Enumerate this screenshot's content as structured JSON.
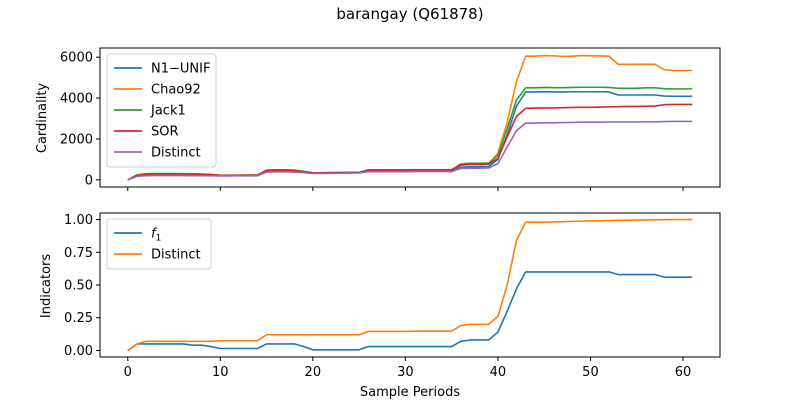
{
  "title": "barangay (Q61878)",
  "colors": {
    "blue": "#1f77b4",
    "orange": "#ff7f0e",
    "green": "#2ca02c",
    "red": "#d62728",
    "purple": "#9467bd"
  },
  "chart_data": [
    {
      "type": "line",
      "ylabel": "Cardinality",
      "xlim": [
        -3,
        64
      ],
      "ylim": [
        -350,
        6450
      ],
      "xticks": [
        0,
        10,
        20,
        30,
        40,
        50,
        60
      ],
      "yticks": [
        0,
        2000,
        4000,
        6000
      ],
      "ytick_labels": [
        "0",
        "2000",
        "4000",
        "6000"
      ],
      "legend_position": "upper left",
      "x": [
        0,
        1,
        2,
        3,
        4,
        5,
        6,
        7,
        8,
        9,
        10,
        11,
        12,
        13,
        14,
        15,
        16,
        17,
        18,
        19,
        20,
        21,
        22,
        23,
        24,
        25,
        26,
        27,
        28,
        29,
        30,
        31,
        32,
        33,
        34,
        35,
        36,
        37,
        38,
        39,
        40,
        41,
        42,
        43,
        44,
        45,
        46,
        47,
        48,
        49,
        50,
        51,
        52,
        53,
        54,
        55,
        56,
        57,
        58,
        59,
        60,
        61
      ],
      "series": [
        {
          "name": "N1−UNIF",
          "color": "blue",
          "values": [
            0,
            180,
            220,
            240,
            250,
            250,
            240,
            230,
            220,
            210,
            200,
            205,
            210,
            215,
            220,
            420,
            430,
            430,
            420,
            380,
            330,
            335,
            340,
            345,
            350,
            355,
            430,
            430,
            430,
            430,
            430,
            440,
            440,
            440,
            440,
            440,
            620,
            640,
            640,
            650,
            1000,
            2200,
            3600,
            4300,
            4300,
            4310,
            4300,
            4300,
            4310,
            4310,
            4310,
            4310,
            4300,
            4150,
            4150,
            4150,
            4150,
            4150,
            4100,
            4090,
            4090,
            4090
          ]
        },
        {
          "name": "Chao92",
          "color": "orange",
          "values": [
            0,
            230,
            280,
            290,
            290,
            290,
            280,
            280,
            270,
            250,
            210,
            215,
            220,
            225,
            230,
            450,
            460,
            460,
            450,
            390,
            330,
            335,
            340,
            345,
            350,
            355,
            450,
            450,
            450,
            450,
            450,
            460,
            460,
            460,
            460,
            460,
            720,
            740,
            740,
            760,
            1300,
            2800,
            4800,
            6050,
            6050,
            6080,
            6070,
            6040,
            6050,
            6080,
            6070,
            6060,
            6050,
            5650,
            5650,
            5650,
            5660,
            5650,
            5380,
            5350,
            5350,
            5350
          ]
        },
        {
          "name": "Jack1",
          "color": "green",
          "values": [
            0,
            240,
            300,
            310,
            310,
            310,
            300,
            295,
            285,
            265,
            225,
            228,
            230,
            232,
            235,
            480,
            490,
            490,
            480,
            420,
            345,
            350,
            355,
            360,
            365,
            370,
            490,
            490,
            490,
            490,
            490,
            500,
            500,
            500,
            500,
            500,
            780,
            810,
            810,
            820,
            1200,
            2500,
            3900,
            4500,
            4500,
            4520,
            4510,
            4510,
            4520,
            4530,
            4530,
            4530,
            4520,
            4480,
            4480,
            4480,
            4500,
            4500,
            4460,
            4450,
            4450,
            4450
          ]
        },
        {
          "name": "SOR",
          "color": "red",
          "values": [
            0,
            220,
            280,
            290,
            290,
            290,
            280,
            280,
            270,
            255,
            220,
            222,
            224,
            226,
            228,
            450,
            460,
            460,
            450,
            400,
            340,
            345,
            350,
            355,
            360,
            365,
            460,
            460,
            460,
            460,
            460,
            470,
            470,
            470,
            470,
            470,
            730,
            760,
            760,
            770,
            1050,
            2100,
            3100,
            3500,
            3510,
            3520,
            3520,
            3530,
            3540,
            3550,
            3550,
            3560,
            3570,
            3580,
            3590,
            3590,
            3600,
            3610,
            3680,
            3690,
            3690,
            3690
          ]
        },
        {
          "name": "Distinct",
          "color": "purple",
          "values": [
            0,
            170,
            200,
            210,
            210,
            210,
            210,
            205,
            200,
            195,
            190,
            192,
            194,
            196,
            198,
            380,
            390,
            390,
            380,
            350,
            310,
            315,
            320,
            325,
            330,
            335,
            400,
            400,
            400,
            400,
            400,
            405,
            405,
            405,
            405,
            405,
            560,
            570,
            570,
            580,
            800,
            1600,
            2400,
            2780,
            2780,
            2790,
            2790,
            2800,
            2810,
            2820,
            2820,
            2820,
            2830,
            2830,
            2830,
            2830,
            2840,
            2840,
            2850,
            2860,
            2860,
            2860
          ]
        }
      ]
    },
    {
      "type": "line",
      "xlabel": "Sample Periods",
      "ylabel": "Indicators",
      "xlim": [
        -3,
        64
      ],
      "ylim": [
        -0.05,
        1.05
      ],
      "xticks": [
        0,
        10,
        20,
        30,
        40,
        50,
        60
      ],
      "yticks": [
        0.0,
        0.25,
        0.5,
        0.75,
        1.0
      ],
      "ytick_labels": [
        "0.00",
        "0.25",
        "0.50",
        "0.75",
        "1.00"
      ],
      "legend_position": "upper left",
      "x": [
        0,
        1,
        2,
        3,
        4,
        5,
        6,
        7,
        8,
        9,
        10,
        11,
        12,
        13,
        14,
        15,
        16,
        17,
        18,
        19,
        20,
        21,
        22,
        23,
        24,
        25,
        26,
        27,
        28,
        29,
        30,
        31,
        32,
        33,
        34,
        35,
        36,
        37,
        38,
        39,
        40,
        41,
        42,
        43,
        44,
        45,
        46,
        47,
        48,
        49,
        50,
        51,
        52,
        53,
        54,
        55,
        56,
        57,
        58,
        59,
        60,
        61
      ],
      "series": [
        {
          "name_base": "f",
          "name_sub": "1",
          "color": "blue",
          "values": [
            0,
            0.05,
            0.05,
            0.05,
            0.05,
            0.05,
            0.05,
            0.04,
            0.04,
            0.03,
            0.015,
            0.015,
            0.015,
            0.015,
            0.015,
            0.05,
            0.05,
            0.05,
            0.05,
            0.03,
            0.005,
            0.005,
            0.005,
            0.005,
            0.005,
            0.005,
            0.03,
            0.03,
            0.03,
            0.03,
            0.03,
            0.03,
            0.03,
            0.03,
            0.03,
            0.03,
            0.07,
            0.08,
            0.08,
            0.08,
            0.14,
            0.3,
            0.47,
            0.6,
            0.6,
            0.6,
            0.6,
            0.6,
            0.6,
            0.6,
            0.6,
            0.6,
            0.6,
            0.58,
            0.58,
            0.58,
            0.58,
            0.58,
            0.56,
            0.56,
            0.56,
            0.56
          ]
        },
        {
          "name": "Distinct",
          "color": "orange",
          "values": [
            0,
            0.05,
            0.07,
            0.07,
            0.07,
            0.07,
            0.07,
            0.07,
            0.07,
            0.07,
            0.075,
            0.075,
            0.075,
            0.075,
            0.075,
            0.12,
            0.12,
            0.12,
            0.12,
            0.12,
            0.12,
            0.12,
            0.12,
            0.12,
            0.12,
            0.12,
            0.145,
            0.145,
            0.145,
            0.145,
            0.145,
            0.147,
            0.147,
            0.147,
            0.147,
            0.147,
            0.19,
            0.2,
            0.2,
            0.2,
            0.26,
            0.5,
            0.84,
            0.98,
            0.98,
            0.98,
            0.982,
            0.984,
            0.986,
            0.988,
            0.99,
            0.99,
            0.992,
            0.994,
            0.995,
            0.996,
            0.997,
            0.998,
            0.999,
            1.0,
            1.0,
            1.0
          ]
        }
      ]
    }
  ]
}
